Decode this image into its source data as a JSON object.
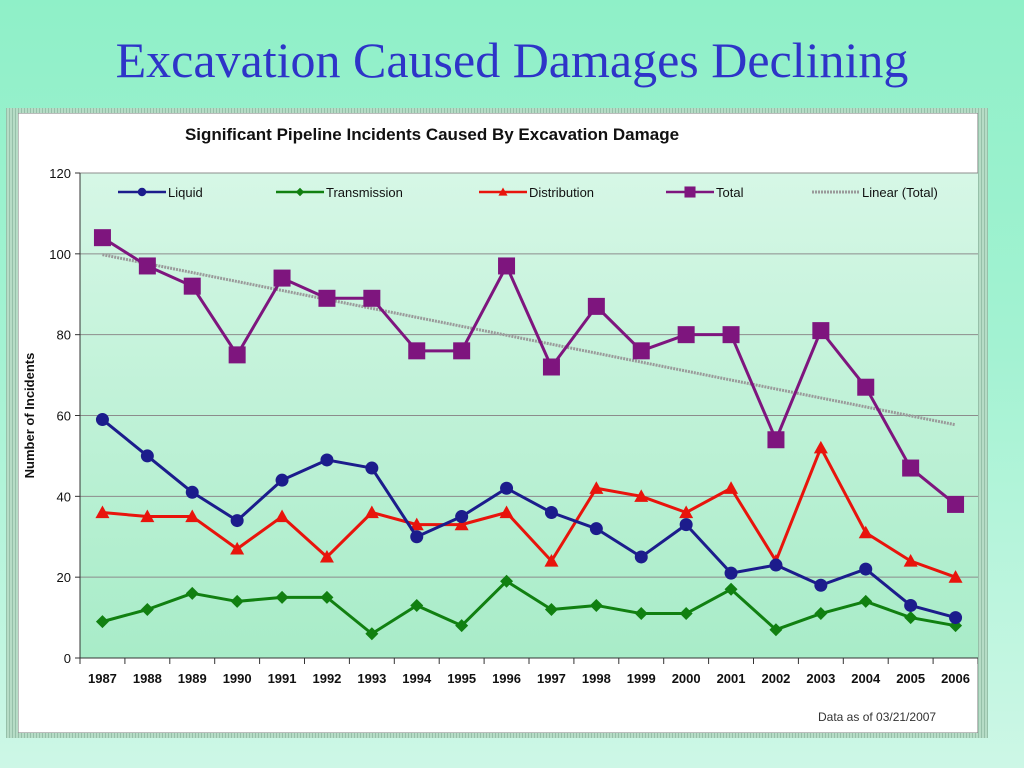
{
  "slide": {
    "title": "Excavation Caused Damages Declining",
    "note": "Data as of  03/21/2007"
  },
  "colors": {
    "title": "#2e34c8",
    "liquid": "#1c1c8c",
    "transmission": "#118011",
    "distribution": "#e8140c",
    "total": "#7e157e",
    "linear_total": "#9a9a9a",
    "plot_top": "#d6f7e6",
    "plot_bottom": "#a8ecc8"
  },
  "chart_data": {
    "type": "line",
    "title": "Significant Pipeline Incidents Caused By Excavation Damage",
    "xlabel": "",
    "ylabel": "Number of Incidents",
    "ylim": [
      0,
      120
    ],
    "yticks": [
      0,
      20,
      40,
      60,
      80,
      100,
      120
    ],
    "grid": "horizontal",
    "legend_position": "top",
    "categories": [
      "1987",
      "1988",
      "1989",
      "1990",
      "1991",
      "1992",
      "1993",
      "1994",
      "1995",
      "1996",
      "1997",
      "1998",
      "1999",
      "2000",
      "2001",
      "2002",
      "2003",
      "2004",
      "2005",
      "2006"
    ],
    "series": [
      {
        "name": "Liquid",
        "marker": "circle",
        "values": [
          59,
          50,
          41,
          34,
          44,
          49,
          47,
          30,
          35,
          42,
          36,
          32,
          25,
          33,
          21,
          23,
          18,
          22,
          13,
          10
        ]
      },
      {
        "name": "Transmission",
        "marker": "diamond",
        "values": [
          9,
          12,
          16,
          14,
          15,
          15,
          6,
          13,
          8,
          19,
          12,
          13,
          11,
          11,
          17,
          7,
          11,
          14,
          10,
          8
        ]
      },
      {
        "name": "Distribution",
        "marker": "triangle",
        "values": [
          36,
          35,
          35,
          27,
          35,
          25,
          36,
          33,
          33,
          36,
          24,
          42,
          40,
          36,
          42,
          24,
          52,
          31,
          24,
          20
        ]
      },
      {
        "name": "Total",
        "marker": "square",
        "values": [
          104,
          97,
          92,
          75,
          94,
          89,
          89,
          76,
          76,
          97,
          72,
          87,
          76,
          80,
          80,
          54,
          81,
          67,
          47,
          38
        ]
      },
      {
        "name": "Linear (Total)",
        "marker": "none",
        "trendline": true,
        "values": [
          99.8,
          97.6,
          95.4,
          93.1,
          90.9,
          88.7,
          86.5,
          84.3,
          82.1,
          79.9,
          77.6,
          75.4,
          73.2,
          71.0,
          68.8,
          66.6,
          64.3,
          62.1,
          59.9,
          57.7
        ]
      }
    ]
  }
}
